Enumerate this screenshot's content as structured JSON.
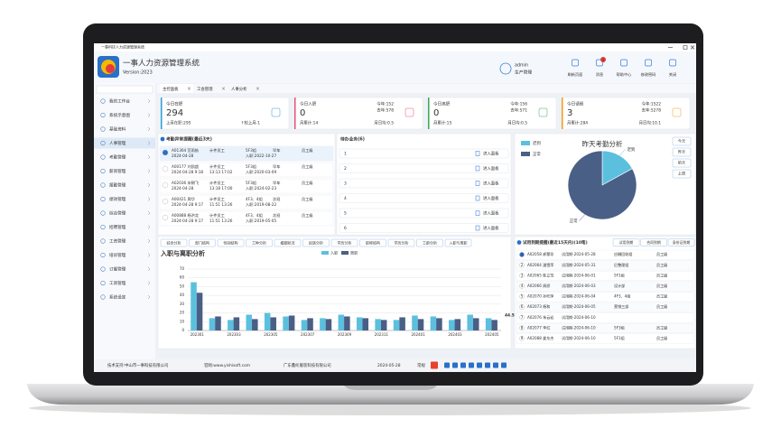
{
  "window": {
    "title": "一事科技人力资源管理系统"
  },
  "header": {
    "app_name": "一事人力资源管理系统",
    "version": "Version:2023",
    "user": "admin",
    "role": "生产管理",
    "message_badge": "3",
    "actions": [
      "刷新页面",
      "消息",
      "帮助中心",
      "修改密码",
      "关闭"
    ]
  },
  "sidebar": [
    "我的工作台",
    "系统示意图",
    "基础资料",
    "人事管理",
    "考勤管理",
    "薪资管理",
    "报勤管理",
    "绩效管理",
    "综合管理",
    "招聘管理",
    "工资管理",
    "培训管理",
    "订餐管理",
    "工资管理",
    "系统设定"
  ],
  "tabs": [
    "主控面板",
    "工会管理",
    "人事分析"
  ],
  "kpi_cards": [
    {
      "title": "今日在职",
      "value": "294",
      "color": "#2a9fd6",
      "right_top": [],
      "bottom_left": "上月在职:295",
      "bottom_right": "↑较上月-1"
    },
    {
      "title": "今日入职",
      "value": "0",
      "color": "#e8507a",
      "right_top": [
        "今年:152",
        "去年:578"
      ],
      "bottom_left": "月累计:14",
      "bottom_right": "月日均:0.5"
    },
    {
      "title": "今日离职",
      "value": "0",
      "color": "#3aa757",
      "right_top": [
        "今年:156",
        "去年:571"
      ],
      "bottom_left": "月累计:15",
      "bottom_right": "月日均:0.5"
    },
    {
      "title": "今日请假",
      "value": "3",
      "color": "#f39c12",
      "right_top": [
        "今年:1522",
        "去年:5278"
      ],
      "bottom_left": "月累计:284",
      "bottom_right": "月日均:10.1"
    }
  ],
  "attendance": {
    "title": "考勤异常提醒(最近3天)",
    "rows": [
      {
        "line1": [
          "A01304 范雨航",
          "计件员工",
          "5F3组",
          "早车",
          "员工级"
        ],
        "line2": [
          "2024-04-28",
          "入职:2022-10-27"
        ]
      },
      {
        "line1": [
          "A00177 刘凯超",
          "计件员工",
          "5F3组",
          "早车",
          "员工级"
        ],
        "line2": [
          "2024-04-28 9:18",
          "13:13 17:02",
          "入职:2020-03-09"
        ]
      },
      {
        "line1": [
          "A02036 宋朝飞",
          "计件员工",
          "5F3组",
          "早车",
          "员工级"
        ],
        "line2": [
          "2024-04-28",
          "13:18 17:00",
          "入职:2024-02-23"
        ]
      },
      {
        "line1": [
          "A00421 周华",
          "计件员工",
          "4F3、4组",
          "次班",
          "员工级"
        ],
        "line2": [
          "2024-04-28 9:17",
          "11:51 13:26",
          "入职:2019-08-22"
        ]
      },
      {
        "line1": [
          "A00888 杨洪北",
          "计件员工",
          "4F3、4组",
          "次班",
          "员工级"
        ],
        "line2": [
          "2024-04-28 9:17",
          "11:51 13:26",
          "入职:2019-05-05"
        ]
      }
    ]
  },
  "todo": {
    "title": "待办业务(6)",
    "rows": [
      {
        "index": "1",
        "action": "进入面板"
      },
      {
        "index": "2",
        "action": "进入面板"
      },
      {
        "index": "3",
        "action": "进入面板"
      },
      {
        "index": "4",
        "action": "进入面板"
      },
      {
        "index": "5",
        "action": "进入面板"
      },
      {
        "index": "6",
        "action": "进入面板"
      }
    ]
  },
  "analysis_tabs": [
    "综合分析",
    "部门结构",
    "性别结构",
    "工种分析",
    "婚姻状况",
    "民族分析",
    "学历分析",
    "职称结构",
    "学历分析",
    "工龄分析",
    "入职与离职"
  ],
  "chart_data": [
    {
      "type": "bar",
      "title": "入职与离职分析",
      "categories": [
        "202301",
        null,
        "202303",
        null,
        "202305",
        null,
        "202307",
        null,
        "202309",
        null,
        "202311",
        null,
        "202401",
        null,
        "202403",
        null,
        "202405"
      ],
      "series": [
        {
          "name": "入职",
          "color": "#5bc0de",
          "values": [
            55,
            14,
            12,
            18,
            20,
            16,
            12,
            14,
            18,
            15,
            13,
            12,
            17,
            16,
            12,
            18,
            14
          ]
        },
        {
          "name": "离职",
          "color": "#4a5f86",
          "values": [
            43,
            16,
            15,
            13,
            15,
            17,
            14,
            13,
            16,
            14,
            12,
            15,
            13,
            14,
            13,
            14,
            12
          ]
        }
      ],
      "ylim": [
        0,
        70
      ],
      "yticks": [
        0,
        10,
        20,
        30,
        40,
        50,
        60,
        70
      ],
      "grid": true,
      "annotation": "44.58"
    },
    {
      "type": "pie",
      "title": "昨天考勤分析",
      "categories": [
        "迟到",
        "正常"
      ],
      "values": [
        17,
        83
      ],
      "colors": [
        "#5bc0de",
        "#4a5f86"
      ]
    }
  ],
  "pie_buttons": [
    "今天",
    "昨天",
    "前天",
    "上周"
  ],
  "probation": {
    "title": "试用到期提醒(最近15天内)(10笔)",
    "buttons": [
      "试用到期",
      "合同到期",
      "身份证到期"
    ],
    "rows": [
      [
        "1",
        "A02058 郝蒙珍",
        "试用期-2024-05-28",
        "应酬回收组",
        "员工级"
      ],
      [
        "2",
        "A02064 潘雪萍",
        "试用期-2024-05-31",
        "后整理组",
        "员工级"
      ],
      [
        "3",
        "A02065 陈立笃",
        "试用期-2024-06-01",
        "5F1组",
        "员工级"
      ],
      [
        "4",
        "A02066 周娇",
        "试用期-2024-06-03",
        "设计部",
        "员工级"
      ],
      [
        "5",
        "A02070 孙旺萍",
        "试用期-2024-06-04",
        "4F3、4组",
        "员工级"
      ],
      [
        "6",
        "A02073 杨和",
        "试用期-2024-06-05",
        "营销三部",
        "员工级"
      ],
      [
        "7",
        "A02076 朱云岩",
        "试用期-2024-06-10"
      ],
      [
        "8",
        "A02077 李红",
        "试用期-2024-06-10",
        "5F3组",
        "员工级"
      ],
      [
        "9",
        "A02088 姜东杰",
        "试用期-2024-06-10",
        "5F1组",
        "员工级"
      ]
    ]
  },
  "status_bar": {
    "support": "技术支持:中山市一事科技有限公司",
    "website": "官网:www.yishisoft.com",
    "company": "广东鑫纶服装科技有限公司",
    "date": "2024-05-28",
    "mode": "常规"
  }
}
